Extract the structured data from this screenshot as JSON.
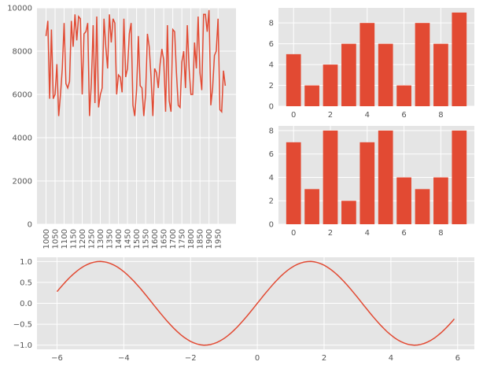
{
  "style": {
    "panel_bg": "#e5e5e5",
    "grid": "#ffffff",
    "series_color": "#e24a33",
    "tick_color": "#555555"
  },
  "chart_data": [
    {
      "type": "line",
      "position": "top-left",
      "x_start": 1000,
      "x_end": 1999,
      "xticks": [
        1000,
        1050,
        1100,
        1150,
        1200,
        1250,
        1300,
        1350,
        1400,
        1450,
        1500,
        1550,
        1600,
        1650,
        1700,
        1750,
        1800,
        1850,
        1900,
        1950
      ],
      "xtick_rotation": 90,
      "ylim": [
        0,
        10000
      ],
      "yticks": [
        0,
        2000,
        4000,
        6000,
        8000,
        10000
      ],
      "grid": true,
      "series": [
        {
          "x": [
            1000,
            1010,
            1020,
            1030,
            1040,
            1050,
            1060,
            1070,
            1080,
            1090,
            1100,
            1110,
            1120,
            1130,
            1140,
            1150,
            1160,
            1170,
            1180,
            1190,
            1200,
            1210,
            1220,
            1230,
            1240,
            1250,
            1260,
            1270,
            1280,
            1290,
            1300,
            1310,
            1320,
            1330,
            1340,
            1350,
            1360,
            1370,
            1380,
            1390,
            1400,
            1410,
            1420,
            1430,
            1440,
            1450,
            1460,
            1470,
            1480,
            1490,
            1500,
            1510,
            1520,
            1530,
            1540,
            1550,
            1560,
            1570,
            1580,
            1590,
            1600,
            1610,
            1620,
            1630,
            1640,
            1650,
            1660,
            1670,
            1680,
            1690,
            1700,
            1710,
            1720,
            1730,
            1740,
            1750,
            1760,
            1770,
            1780,
            1790,
            1800,
            1810,
            1820,
            1830,
            1840,
            1850,
            1860,
            1870,
            1880,
            1890,
            1900,
            1910,
            1920,
            1930,
            1940,
            1950,
            1960,
            1970,
            1980,
            1990
          ],
          "y": [
            8700,
            9400,
            5800,
            9000,
            5800,
            6000,
            7400,
            5000,
            6000,
            7200,
            9300,
            6500,
            6300,
            6600,
            9400,
            8200,
            9700,
            8500,
            9600,
            9500,
            6000,
            8800,
            8900,
            9300,
            5000,
            6500,
            9200,
            5600,
            9600,
            5400,
            6000,
            6300,
            9500,
            8200,
            7200,
            9700,
            8400,
            9500,
            9300,
            6000,
            6900,
            6800,
            6100,
            9500,
            6800,
            7200,
            8800,
            9300,
            5500,
            5000,
            6200,
            8700,
            6400,
            6300,
            5000,
            6000,
            8800,
            8200,
            6800,
            5000,
            7200,
            7000,
            6300,
            7400,
            8100,
            7600,
            5200,
            9200,
            5700,
            5200,
            9000,
            8900,
            7000,
            5500,
            5400,
            7500,
            8000,
            6300,
            9200,
            7200,
            6000,
            6000,
            8400,
            7200,
            9600,
            7000,
            6200,
            9700,
            9700,
            8900,
            9900,
            5500,
            6300,
            7800,
            8000,
            9500,
            5300,
            5200,
            7100,
            6400
          ]
        }
      ]
    },
    {
      "type": "bar",
      "position": "top-right",
      "categories": [
        0,
        1,
        2,
        3,
        4,
        5,
        6,
        7,
        8,
        9
      ],
      "values": [
        5,
        2,
        4,
        6,
        8,
        6,
        2,
        8,
        6,
        9
      ],
      "xticks": [
        0,
        2,
        4,
        6,
        8
      ],
      "yticks": [
        0,
        2,
        4,
        6,
        8
      ],
      "ylim": [
        0,
        9.45
      ],
      "grid": true
    },
    {
      "type": "bar",
      "position": "middle-right",
      "categories": [
        0,
        1,
        2,
        3,
        4,
        5,
        6,
        7,
        8,
        9
      ],
      "values": [
        7,
        3,
        8,
        2,
        7,
        8,
        4,
        3,
        4,
        8
      ],
      "xticks": [
        0,
        2,
        4,
        6,
        8
      ],
      "yticks": [
        0,
        2,
        4,
        6,
        8
      ],
      "ylim": [
        0,
        8.4
      ],
      "grid": true
    },
    {
      "type": "line",
      "position": "bottom",
      "function": "sin",
      "x_start": -6.0,
      "x_end": 5.9,
      "x_step": 0.1,
      "xlim": [
        -6.6,
        6.5
      ],
      "xticks": [
        -6,
        -4,
        -2,
        0,
        2,
        4,
        6
      ],
      "ylim": [
        -1.1,
        1.1
      ],
      "yticks": [
        -1.0,
        -0.5,
        0.0,
        0.5,
        1.0
      ],
      "grid": true
    }
  ]
}
